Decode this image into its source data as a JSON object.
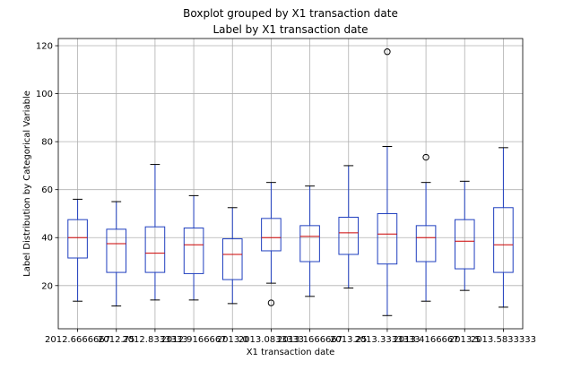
{
  "chart_data": {
    "type": "boxplot",
    "title": "Boxplot grouped by X1 transaction date",
    "subtitle": "Label by X1 transaction date",
    "xlabel": "X1 transaction date",
    "ylabel": "Label Distribution by Categorical Variable",
    "ylim": [
      2,
      123
    ],
    "yticks": [
      20,
      40,
      60,
      80,
      100,
      120
    ],
    "grid": true,
    "colors": {
      "box": "#1f3fbf",
      "median": "#cc0000",
      "cap": "#000000",
      "grid": "#b0b0b0"
    },
    "categories": [
      "2012.666667",
      "2012.75",
      "2012.833333",
      "2012.916667",
      "2013.0",
      "2013.083333",
      "2013.166667",
      "2013.25",
      "2013.333333",
      "2013.416667",
      "2013.5",
      "2013.583333"
    ],
    "category_labels": [
      "2012.6666667",
      "2012.75",
      "2012.8333333",
      "2012.9166667",
      "2013.0",
      "2013.0833333",
      "2013.1666667",
      "2013.25",
      "2013.3333333",
      "2013.4166667",
      "2013.5",
      "2013.5833333"
    ],
    "boxes": [
      {
        "min": 13.5,
        "q1": 31.5,
        "median": 40.0,
        "q3": 47.5,
        "max": 56.0,
        "fliers": []
      },
      {
        "min": 11.5,
        "q1": 25.5,
        "median": 37.5,
        "q3": 43.5,
        "max": 55.0,
        "fliers": []
      },
      {
        "min": 14.0,
        "q1": 25.5,
        "median": 33.5,
        "q3": 44.5,
        "max": 70.5,
        "fliers": []
      },
      {
        "min": 14.0,
        "q1": 25.0,
        "median": 37.0,
        "q3": 44.0,
        "max": 57.5,
        "fliers": []
      },
      {
        "min": 12.5,
        "q1": 22.5,
        "median": 33.0,
        "q3": 39.5,
        "max": 52.5,
        "fliers": []
      },
      {
        "min": 21.0,
        "q1": 34.5,
        "median": 40.0,
        "q3": 48.0,
        "max": 63.0,
        "fliers": [
          12.8
        ]
      },
      {
        "min": 15.5,
        "q1": 30.0,
        "median": 40.5,
        "q3": 45.0,
        "max": 61.5,
        "fliers": []
      },
      {
        "min": 19.0,
        "q1": 33.0,
        "median": 42.0,
        "q3": 48.5,
        "max": 70.0,
        "fliers": []
      },
      {
        "min": 7.5,
        "q1": 29.0,
        "median": 41.5,
        "q3": 50.0,
        "max": 78.0,
        "fliers": [
          117.5
        ]
      },
      {
        "min": 13.5,
        "q1": 30.0,
        "median": 40.0,
        "q3": 45.0,
        "max": 63.0,
        "fliers": [
          73.5
        ]
      },
      {
        "min": 18.0,
        "q1": 27.0,
        "median": 38.5,
        "q3": 47.5,
        "max": 63.5,
        "fliers": []
      },
      {
        "min": 11.0,
        "q1": 25.5,
        "median": 37.0,
        "q3": 52.5,
        "max": 77.5,
        "fliers": []
      }
    ]
  }
}
